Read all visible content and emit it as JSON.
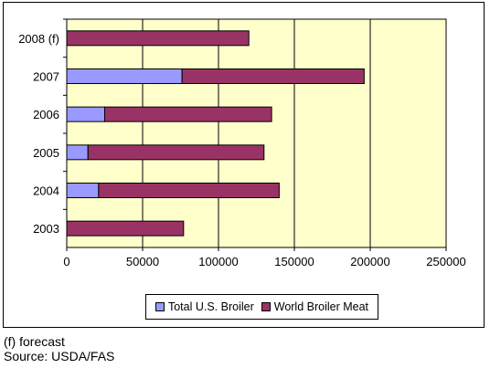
{
  "chart_data": {
    "type": "bar",
    "orientation": "horizontal",
    "stacked": true,
    "categories": [
      "2003",
      "2004",
      "2005",
      "2006",
      "2007",
      "2008 (f)"
    ],
    "series": [
      {
        "name": "Total U.S. Broiler",
        "values": [
          0,
          21000,
          14000,
          25000,
          76000,
          0
        ]
      },
      {
        "name": "World Broiler Meat",
        "values": [
          77000,
          119000,
          116000,
          110000,
          120000,
          120000
        ]
      }
    ],
    "x_ticks": [
      "0",
      "50000",
      "100000",
      "150000",
      "200000",
      "250000"
    ],
    "xlim": [
      0,
      250000
    ],
    "grid": "vertical",
    "legend_position": "bottom",
    "colors": {
      "plot_bg": "#ffffcc",
      "Total U.S. Broiler": "#9999ff",
      "World Broiler Meat": "#993366",
      "grid": "#000000"
    }
  },
  "footnote": "(f) forecast",
  "source": "Source: USDA/FAS"
}
